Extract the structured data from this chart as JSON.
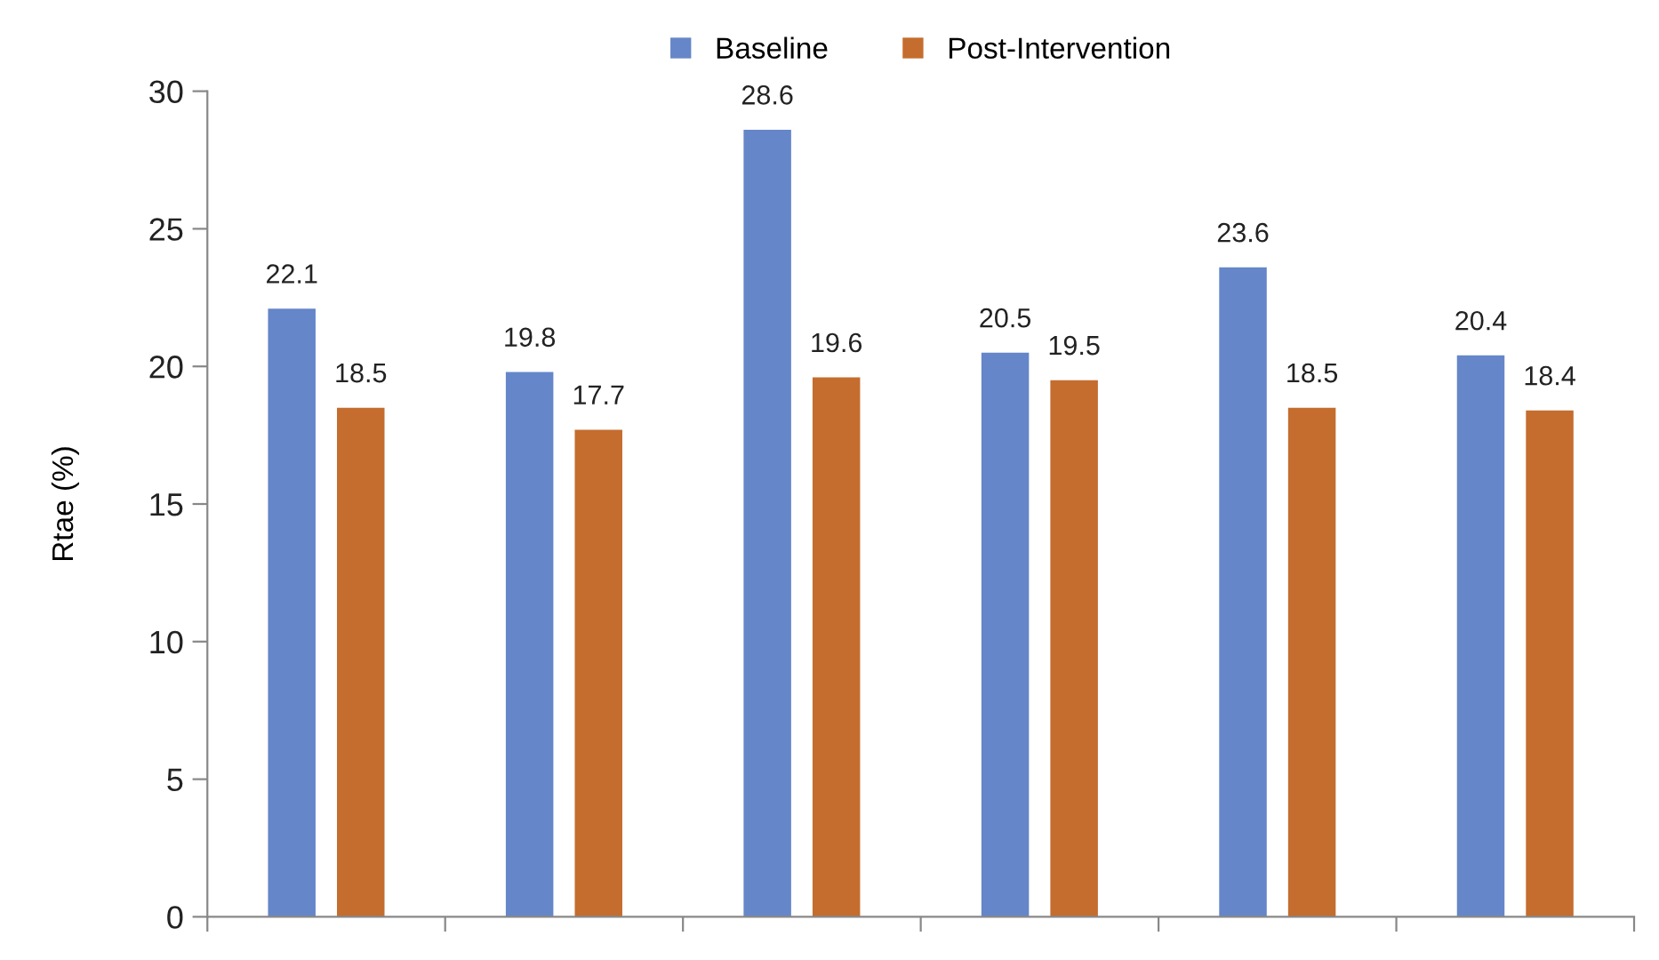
{
  "chart_data": {
    "type": "bar",
    "ylabel": "Rtae (%)",
    "categories": [
      null,
      null,
      null,
      null,
      null,
      null
    ],
    "series": [
      {
        "name": "Baseline",
        "color": "#6586c8",
        "values": [
          22.1,
          19.8,
          28.6,
          20.5,
          23.6,
          20.4
        ]
      },
      {
        "name": "Post-Intervention",
        "color": "#c46d2e",
        "values": [
          18.5,
          17.7,
          19.6,
          19.5,
          18.5,
          18.4
        ]
      }
    ],
    "ylim": [
      0,
      30
    ],
    "yticks": [
      0,
      5,
      10,
      15,
      20,
      25,
      30
    ],
    "grid": false,
    "legend": "top",
    "data_labels": true
  }
}
